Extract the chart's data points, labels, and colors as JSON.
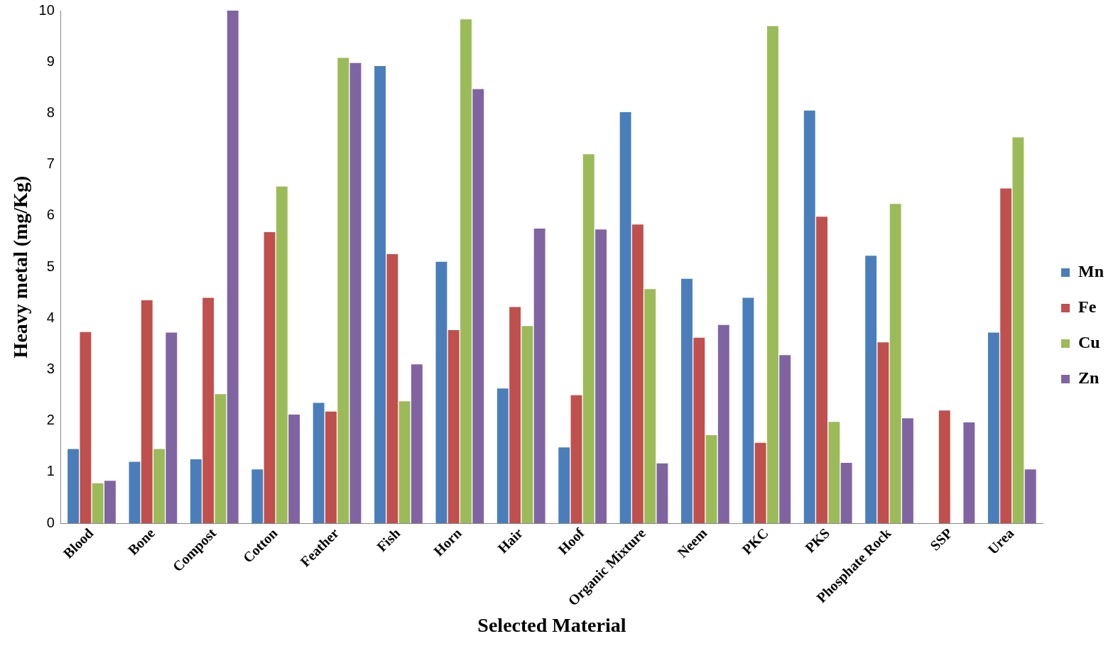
{
  "chart_data": {
    "type": "bar",
    "xlabel": "Selected Material",
    "ylabel": "Heavy metal (mg/Kg)",
    "categories": [
      "Blood",
      "Bone",
      "Compost",
      "Cotton",
      "Feather",
      "Fish",
      "Horn",
      "Hair",
      "Hoof",
      "Organic Mixture",
      "Neem",
      "PKC",
      "PKS",
      "Phosphate Rock",
      "SSP",
      "Urea"
    ],
    "series": [
      {
        "name": "Mn",
        "color": "#4a7ebb",
        "values": [
          1.45,
          1.2,
          1.25,
          1.05,
          2.35,
          8.92,
          5.1,
          2.63,
          1.48,
          8.02,
          4.77,
          4.4,
          8.05,
          5.22,
          0,
          3.72
        ]
      },
      {
        "name": "Fe",
        "color": "#c0504d",
        "values": [
          3.73,
          4.35,
          4.4,
          5.68,
          2.18,
          5.25,
          3.77,
          4.22,
          2.5,
          5.83,
          3.62,
          1.57,
          5.98,
          3.53,
          2.2,
          6.53
        ]
      },
      {
        "name": "Cu",
        "color": "#9bbb59",
        "values": [
          0.78,
          1.45,
          2.52,
          6.57,
          9.08,
          2.38,
          9.83,
          3.85,
          7.2,
          4.57,
          1.72,
          9.7,
          1.98,
          6.23,
          0,
          7.53
        ]
      },
      {
        "name": "Zn",
        "color": "#8064a2",
        "values": [
          0.83,
          3.72,
          10.0,
          2.12,
          8.98,
          3.1,
          8.47,
          5.75,
          5.73,
          1.17,
          3.87,
          3.28,
          1.18,
          2.05,
          1.97,
          1.05
        ]
      }
    ],
    "ylim": [
      0,
      10
    ],
    "yticks": [
      0,
      1,
      2,
      3,
      4,
      5,
      6,
      7,
      8,
      9,
      10
    ],
    "grid": false,
    "legend": "right"
  }
}
